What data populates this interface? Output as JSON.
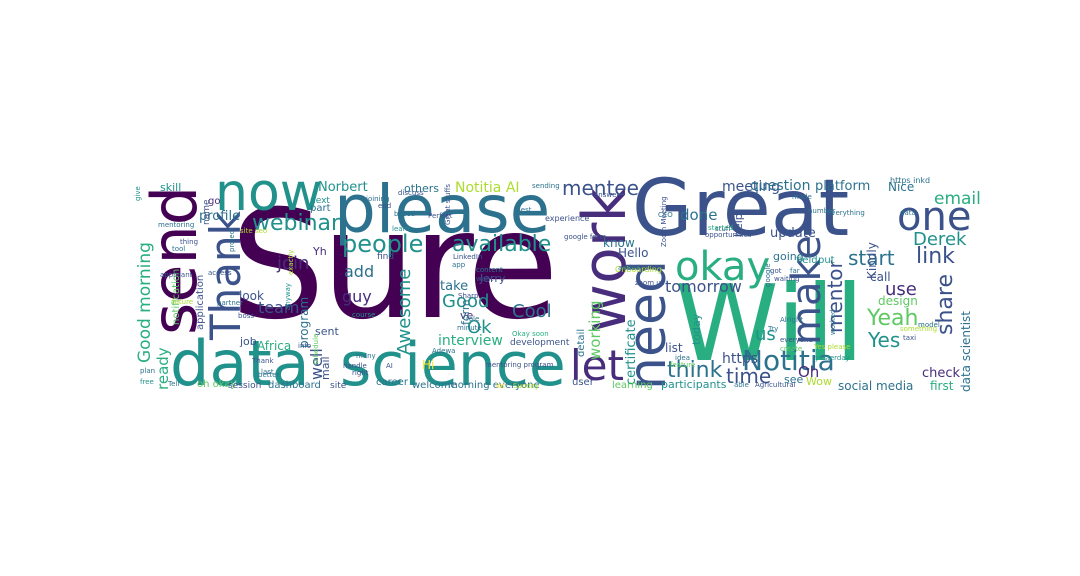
{
  "colors": {
    "c1": "#440154",
    "c2": "#472d7b",
    "c3": "#3b528b",
    "c4": "#2c728e",
    "c5": "#21918c",
    "c6": "#28ae80",
    "c7": "#5ec962",
    "c8": "#addc30",
    "c9": "#fde725"
  },
  "words": [
    {
      "text": "Sure",
      "color": "c1"
    },
    {
      "text": "Will",
      "color": "c6"
    },
    {
      "text": "Great",
      "color": "c3"
    },
    {
      "text": "send",
      "color": "c1"
    },
    {
      "text": "please",
      "color": "c4"
    },
    {
      "text": "data",
      "color": "c5"
    },
    {
      "text": "science",
      "color": "c5"
    },
    {
      "text": "now",
      "color": "c5"
    },
    {
      "text": "work",
      "color": "c2"
    },
    {
      "text": "need",
      "color": "c3"
    },
    {
      "text": "Thank",
      "color": "c3"
    },
    {
      "text": "okay",
      "color": "c6"
    },
    {
      "text": "one",
      "color": "c3"
    },
    {
      "text": "let",
      "color": "c2"
    },
    {
      "text": "make",
      "color": "c3"
    },
    {
      "text": "people",
      "color": "c5"
    },
    {
      "text": "available",
      "color": "c5"
    },
    {
      "text": "Notitia",
      "color": "c4"
    },
    {
      "text": "mentee",
      "color": "c3"
    },
    {
      "text": "webinar",
      "color": "c5"
    },
    {
      "text": "Good morning",
      "color": "c6"
    },
    {
      "text": "time",
      "color": "c3"
    },
    {
      "text": "think",
      "color": "c4"
    },
    {
      "text": "share",
      "color": "c3"
    },
    {
      "text": "link",
      "color": "c3"
    },
    {
      "text": "Yeah",
      "color": "c7"
    },
    {
      "text": "Yes",
      "color": "c5"
    },
    {
      "text": "start",
      "color": "c4"
    },
    {
      "text": "mentor",
      "color": "c3"
    },
    {
      "text": "Derek",
      "color": "c5"
    },
    {
      "text": "email",
      "color": "c6"
    },
    {
      "text": "join",
      "color": "c2"
    },
    {
      "text": "Awesome",
      "color": "c5"
    },
    {
      "text": "Cool",
      "color": "c4"
    },
    {
      "text": "Good",
      "color": "c5"
    },
    {
      "text": "Ok",
      "color": "c5"
    },
    {
      "text": "use",
      "color": "c2"
    },
    {
      "text": "us",
      "color": "c5"
    },
    {
      "text": "guy",
      "color": "c2"
    },
    {
      "text": "team",
      "color": "c3"
    },
    {
      "text": "add",
      "color": "c4"
    },
    {
      "text": "working",
      "color": "c7"
    },
    {
      "text": "ready",
      "color": "c6"
    },
    {
      "text": "tomorrow",
      "color": "c3"
    },
    {
      "text": "done",
      "color": "c4"
    },
    {
      "text": "Notitia AI",
      "color": "c8"
    },
    {
      "text": "meeting",
      "color": "c3"
    },
    {
      "text": "question",
      "color": "c4"
    },
    {
      "text": "platform",
      "color": "c4"
    },
    {
      "text": "interview",
      "color": "c6"
    },
    {
      "text": "Norbert",
      "color": "c5"
    },
    {
      "text": "well",
      "color": "c3"
    },
    {
      "text": "Oh",
      "color": "c2"
    },
    {
      "text": "https",
      "color": "c3"
    },
    {
      "text": "profile",
      "color": "c4"
    },
    {
      "text": "take",
      "color": "c4"
    },
    {
      "text": "update",
      "color": "c3"
    },
    {
      "text": "design",
      "color": "c7"
    },
    {
      "text": "call",
      "color": "c3"
    },
    {
      "text": "check",
      "color": "c2"
    },
    {
      "text": "social media",
      "color": "c4"
    },
    {
      "text": "Nice",
      "color": "c4"
    },
    {
      "text": "first",
      "color": "c6"
    },
    {
      "text": "data scientist",
      "color": "c4"
    },
    {
      "text": "Kindly",
      "color": "c3"
    },
    {
      "text": "going",
      "color": "c4"
    },
    {
      "text": "certificate",
      "color": "c5"
    },
    {
      "text": "program",
      "color": "c4"
    },
    {
      "text": "look",
      "color": "c3"
    },
    {
      "text": "Hello",
      "color": "c3"
    },
    {
      "text": "know",
      "color": "c4"
    },
    {
      "text": "skill",
      "color": "c5"
    },
    {
      "text": "others",
      "color": "c4"
    },
    {
      "text": "participants",
      "color": "c5"
    },
    {
      "text": "list",
      "color": "c3"
    },
    {
      "text": "Wow",
      "color": "c8"
    },
    {
      "text": "see",
      "color": "c4"
    },
    {
      "text": "today",
      "color": "c5"
    },
    {
      "text": "job",
      "color": "c3"
    },
    {
      "text": "Africa",
      "color": "c6"
    },
    {
      "text": "dashboard",
      "color": "c4"
    },
    {
      "text": "help",
      "color": "c3"
    },
    {
      "text": "field",
      "color": "c5"
    },
    {
      "text": "put",
      "color": "c5"
    },
    {
      "text": "mail",
      "color": "c3"
    },
    {
      "text": "sent",
      "color": "c3"
    },
    {
      "text": "Jerry",
      "color": "c3"
    },
    {
      "text": "ve",
      "color": "c2"
    },
    {
      "text": "form",
      "color": "c4"
    },
    {
      "text": "Hi",
      "color": "c9"
    },
    {
      "text": "career",
      "color": "c4"
    },
    {
      "text": "welcome",
      "color": "c4"
    },
    {
      "text": "morning everyone",
      "color": "c4"
    },
    {
      "text": "user",
      "color": "c3"
    },
    {
      "text": "learning",
      "color": "c7"
    },
    {
      "text": "oh okay",
      "color": "c7"
    },
    {
      "text": "session",
      "color": "c3"
    },
    {
      "text": "site",
      "color": "c3"
    },
    {
      "text": "development",
      "color": "c3"
    },
    {
      "text": "detail",
      "color": "c4"
    },
    {
      "text": "part",
      "color": "c4"
    },
    {
      "text": "next",
      "color": "c5"
    },
    {
      "text": "Yh",
      "color": "c2"
    },
    {
      "text": "go",
      "color": "c2"
    },
    {
      "text": "name",
      "color": "c3"
    },
    {
      "text": "application",
      "color": "c3"
    },
    {
      "text": "notification",
      "color": "c7"
    },
    {
      "text": "mentoring program",
      "color": "c3"
    },
    {
      "text": "LinkedIn",
      "color": "c3"
    },
    {
      "text": "Onboarding",
      "color": "c8"
    },
    {
      "text": "experience",
      "color": "c3"
    },
    {
      "text": "minute",
      "color": "c4"
    },
    {
      "text": "role",
      "color": "c4"
    },
    {
      "text": "Alright",
      "color": "c4"
    },
    {
      "text": "everyone",
      "color": "c3"
    },
    {
      "text": "Agricultural",
      "color": "c3"
    },
    {
      "text": "able",
      "color": "c4"
    },
    {
      "text": "Try",
      "color": "c4"
    },
    {
      "text": "create",
      "color": "c7"
    },
    {
      "text": "Yes please",
      "color": "c8"
    },
    {
      "text": "taxi",
      "color": "c3"
    },
    {
      "text": "something",
      "color": "c8"
    },
    {
      "text": "model",
      "color": "c4"
    },
    {
      "text": "free",
      "color": "c5"
    },
    {
      "text": "plan",
      "color": "c4"
    },
    {
      "text": "Tell",
      "color": "c4"
    },
    {
      "text": "last",
      "color": "c4"
    },
    {
      "text": "boss",
      "color": "c3"
    },
    {
      "text": "better",
      "color": "c4"
    },
    {
      "text": "handle",
      "color": "c3"
    },
    {
      "text": "many",
      "color": "c4"
    },
    {
      "text": "right",
      "color": "c3"
    },
    {
      "text": "course",
      "color": "c5"
    },
    {
      "text": "info",
      "color": "c3"
    },
    {
      "text": "AI",
      "color": "c3"
    },
    {
      "text": "lot",
      "color": "c9"
    },
    {
      "text": "Sunday",
      "color": "c8"
    },
    {
      "text": "find",
      "color": "c3"
    },
    {
      "text": "Best",
      "color": "c4"
    },
    {
      "text": "give",
      "color": "c5"
    },
    {
      "text": "mentoring",
      "color": "c4"
    },
    {
      "text": "applicant",
      "color": "c3"
    },
    {
      "text": "thing",
      "color": "c3"
    },
    {
      "text": "tool",
      "color": "c4"
    },
    {
      "text": "future",
      "color": "c8"
    },
    {
      "text": "partner",
      "color": "c4"
    },
    {
      "text": "project",
      "color": "c4"
    },
    {
      "text": "based",
      "color": "c4"
    },
    {
      "text": "Perfect",
      "color": "c3"
    },
    {
      "text": "sending",
      "color": "c4"
    },
    {
      "text": "answer",
      "color": "c3"
    },
    {
      "text": "joining",
      "color": "c4"
    },
    {
      "text": "Great stuffs",
      "color": "c3"
    },
    {
      "text": "CEO",
      "color": "c4"
    },
    {
      "text": "Zoom Meeting",
      "color": "c3"
    },
    {
      "text": "stuff",
      "color": "c3"
    },
    {
      "text": "got",
      "color": "c3"
    },
    {
      "text": "far",
      "color": "c4"
    },
    {
      "text": "waiting",
      "color": "c3"
    },
    {
      "text": "number",
      "color": "c4"
    },
    {
      "text": "made",
      "color": "c4"
    },
    {
      "text": "everything",
      "color": "c4"
    },
    {
      "text": "https inkd",
      "color": "c4"
    },
    {
      "text": "google form",
      "color": "c3"
    },
    {
      "text": "zoom us",
      "color": "c3"
    },
    {
      "text": "opportunities",
      "color": "c3"
    },
    {
      "text": "feature",
      "color": "c7"
    },
    {
      "text": "idea",
      "color": "c4"
    },
    {
      "text": "started",
      "color": "c6"
    },
    {
      "text": "yesterday",
      "color": "c5"
    },
    {
      "text": "learn",
      "color": "c5"
    },
    {
      "text": "exactly",
      "color": "c8"
    },
    {
      "text": "content",
      "color": "c4"
    },
    {
      "text": "want",
      "color": "c3"
    },
    {
      "text": "app",
      "color": "c4"
    },
    {
      "text": "Sharp",
      "color": "c3"
    },
    {
      "text": "Okay soon",
      "color": "c6"
    },
    {
      "text": "discuss",
      "color": "c3"
    },
    {
      "text": "end",
      "color": "c3"
    },
    {
      "text": "site seo",
      "color": "c8"
    },
    {
      "text": "schedule",
      "color": "c7"
    },
    {
      "text": "access",
      "color": "c3"
    },
    {
      "text": "Adewa",
      "color": "c4"
    },
    {
      "text": "google",
      "color": "c4"
    },
    {
      "text": "data",
      "color": "c4"
    },
    {
      "text": "worked",
      "color": "c4"
    },
    {
      "text": "added",
      "color": "c4"
    },
    {
      "text": "anyway",
      "color": "c5"
    },
    {
      "text": "Thank",
      "color": "c3"
    }
  ]
}
